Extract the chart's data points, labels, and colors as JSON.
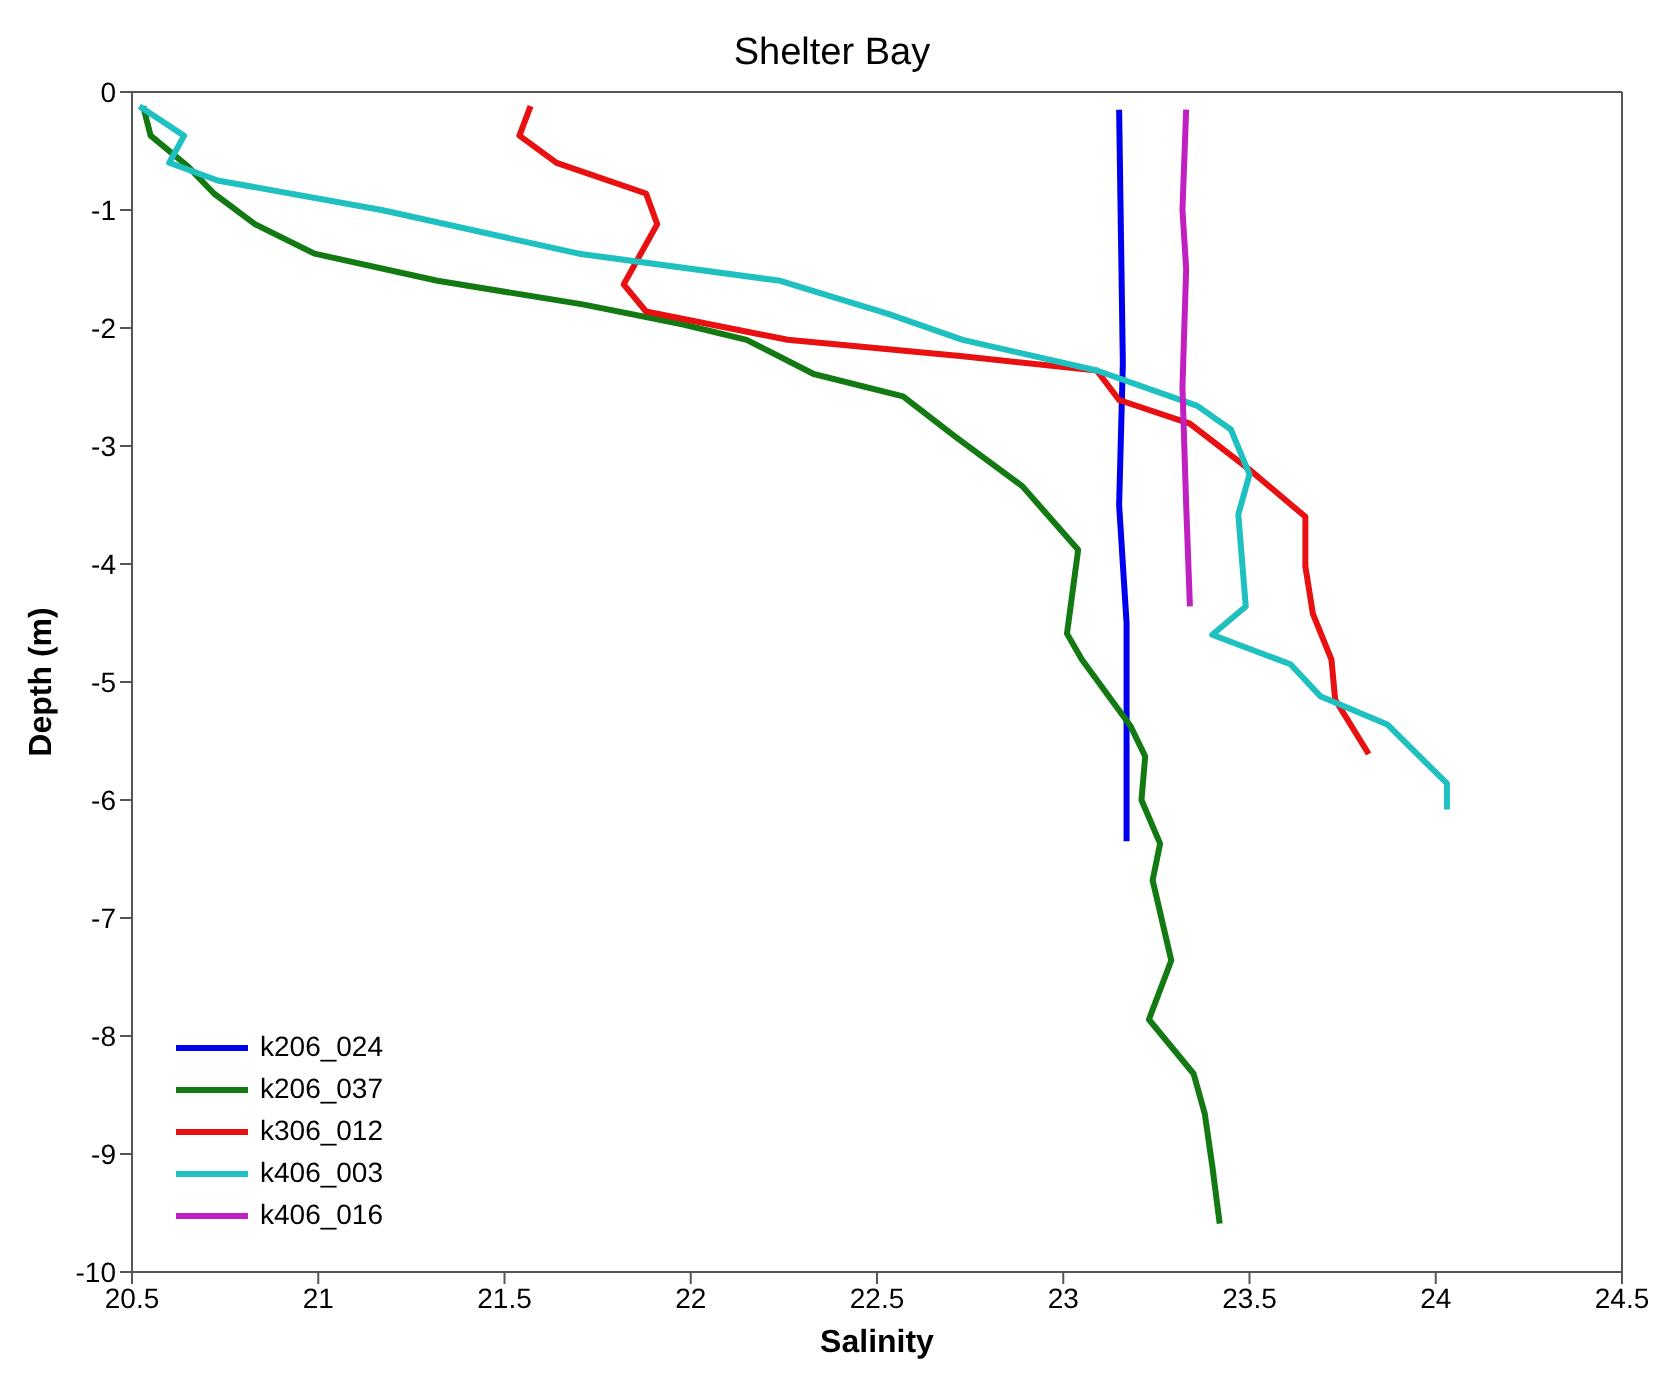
{
  "chart_data": {
    "type": "line",
    "title": "Shelter Bay",
    "xlabel": "Salinity",
    "ylabel": "Depth (m)",
    "xlim": [
      20.5,
      24.5
    ],
    "xticks": [
      20.5,
      21,
      21.5,
      22,
      22.5,
      23,
      23.5,
      24,
      24.5
    ],
    "ylim": [
      -10,
      0
    ],
    "yticks": [
      -10,
      -9,
      -8,
      -7,
      -6,
      -5,
      -4,
      -3,
      -2,
      -1,
      0
    ],
    "legend": "bottom left",
    "marker": "none",
    "line_style": "solid",
    "series": [
      {
        "name": "k206_024",
        "color": "#0000ee",
        "x": [
          23.15,
          23.16,
          23.15,
          23.17,
          23.17
        ],
        "values": [
          -0.15,
          -2.3,
          -3.5,
          -4.5,
          -6.35
        ]
      },
      {
        "name": "k206_037",
        "color": "#137a13",
        "x": [
          20.53,
          20.55,
          20.65,
          20.72,
          20.83,
          20.99,
          21.32,
          21.71,
          21.98,
          22.15,
          22.33,
          22.57,
          22.71,
          22.89,
          23.04,
          23.01,
          23.05,
          23.18,
          23.22,
          23.21,
          23.26,
          23.24,
          23.29,
          23.23,
          23.35,
          23.38,
          23.4,
          23.42
        ],
        "values": [
          -0.12,
          -0.37,
          -0.63,
          -0.86,
          -1.12,
          -1.37,
          -1.6,
          -1.8,
          -1.97,
          -2.1,
          -2.39,
          -2.58,
          -2.92,
          -3.34,
          -3.88,
          -4.59,
          -4.81,
          -5.37,
          -5.63,
          -6.0,
          -6.37,
          -6.68,
          -7.36,
          -7.86,
          -8.32,
          -8.66,
          -9.1,
          -9.59
        ]
      },
      {
        "name": "k306_012",
        "color": "#e81010",
        "x": [
          21.57,
          21.54,
          21.64,
          21.88,
          21.91,
          21.82,
          21.88,
          22.26,
          22.73,
          23.09,
          23.15,
          23.34,
          23.5,
          23.65,
          23.65,
          23.67,
          23.72,
          23.73,
          23.82
        ],
        "values": [
          -0.12,
          -0.37,
          -0.6,
          -0.86,
          -1.12,
          -1.63,
          -1.86,
          -2.1,
          -2.24,
          -2.36,
          -2.61,
          -2.81,
          -3.2,
          -3.6,
          -4.02,
          -4.42,
          -4.81,
          -5.15,
          -5.61
        ]
      },
      {
        "name": "k406_003",
        "color": "#1ec0c0",
        "x": [
          20.52,
          20.64,
          20.6,
          20.73,
          21.17,
          21.7,
          22.24,
          22.53,
          22.73,
          23.09,
          23.36,
          23.45,
          23.5,
          23.47,
          23.49,
          23.4,
          23.61,
          23.69,
          23.87,
          24.03,
          24.03
        ],
        "values": [
          -0.12,
          -0.37,
          -0.6,
          -0.75,
          -1.0,
          -1.37,
          -1.6,
          -1.88,
          -2.1,
          -2.36,
          -2.66,
          -2.86,
          -3.24,
          -3.58,
          -4.36,
          -4.6,
          -4.85,
          -5.12,
          -5.36,
          -5.86,
          -6.08
        ]
      },
      {
        "name": "k406_016",
        "color": "#c020c0",
        "x": [
          23.33,
          23.32,
          23.33,
          23.32,
          23.33,
          23.34
        ],
        "values": [
          -0.15,
          -1.0,
          -1.5,
          -2.5,
          -3.5,
          -4.36
        ]
      }
    ]
  }
}
